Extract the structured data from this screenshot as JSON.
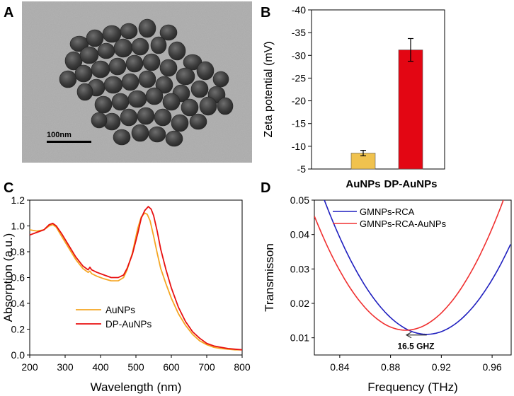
{
  "panels": {
    "A": {
      "label": "A"
    },
    "B": {
      "label": "B"
    },
    "C": {
      "label": "C"
    },
    "D": {
      "label": "D"
    }
  },
  "tem": {
    "scale_bar_label": "100nm"
  },
  "colors": {
    "aunps": "#f5c04a",
    "dp_aunps": "#e8000a",
    "gmnps_rca": "#1f1fbf",
    "gmnps_rca_aunps": "#f03030",
    "axis": "#000000"
  },
  "chart_data": [
    {
      "panel": "B",
      "type": "bar",
      "title": "",
      "xlabel": "",
      "ylabel": "Zeta potential (mV)",
      "categories": [
        "AuNPs",
        "DP-AuNPs"
      ],
      "values": [
        -8.5,
        -31.2
      ],
      "errors": [
        0.6,
        2.5
      ],
      "bar_colors": [
        "#f0c24e",
        "#e30613"
      ],
      "ylim": [
        -5,
        -40
      ],
      "yticks": [
        -5,
        -10,
        -15,
        -20,
        -25,
        -30,
        -35,
        -40
      ],
      "ytick_labels": [
        "-5",
        "-10",
        "-15",
        "-20",
        "-25",
        "-30",
        "-35",
        "-40"
      ]
    },
    {
      "panel": "C",
      "type": "line",
      "xlabel": "Wavelength (nm)",
      "ylabel": "Absorption (a.u.)",
      "xlim": [
        200,
        800
      ],
      "ylim": [
        0.0,
        1.2
      ],
      "xticks": [
        200,
        300,
        400,
        500,
        600,
        700,
        800
      ],
      "xtick_labels": [
        "200",
        "300",
        "400",
        "500",
        "600",
        "700",
        "800"
      ],
      "yticks": [
        0.0,
        0.2,
        0.4,
        0.6,
        0.8,
        1.0,
        1.2
      ],
      "ytick_labels": [
        "0.0",
        "0.2",
        "0.4",
        "0.6",
        "0.8",
        "1.0",
        "1.2"
      ],
      "legend_position": "bottom-left",
      "series": [
        {
          "name": "AuNPs",
          "color": "#f5a623",
          "x": [
            200,
            220,
            240,
            255,
            265,
            275,
            290,
            310,
            330,
            350,
            365,
            370,
            375,
            390,
            410,
            430,
            450,
            465,
            475,
            490,
            505,
            515,
            525,
            532,
            540,
            550,
            560,
            570,
            585,
            600,
            620,
            640,
            660,
            680,
            700,
            720,
            740,
            760,
            780,
            800
          ],
          "y": [
            0.97,
            0.96,
            0.97,
            1.0,
            1.01,
            0.99,
            0.92,
            0.83,
            0.74,
            0.67,
            0.64,
            0.65,
            0.63,
            0.61,
            0.59,
            0.575,
            0.575,
            0.6,
            0.66,
            0.79,
            0.98,
            1.07,
            1.1,
            1.09,
            1.04,
            0.92,
            0.79,
            0.67,
            0.55,
            0.44,
            0.32,
            0.23,
            0.16,
            0.11,
            0.08,
            0.06,
            0.05,
            0.045,
            0.04,
            0.04
          ]
        },
        {
          "name": "DP-AuNPs",
          "color": "#e81010",
          "x": [
            200,
            220,
            240,
            255,
            265,
            275,
            290,
            310,
            330,
            350,
            365,
            370,
            375,
            390,
            410,
            430,
            450,
            465,
            475,
            490,
            505,
            515,
            525,
            535,
            543,
            550,
            560,
            570,
            585,
            600,
            620,
            640,
            660,
            680,
            700,
            720,
            740,
            760,
            780,
            800
          ],
          "y": [
            0.93,
            0.95,
            0.97,
            1.01,
            1.02,
            1.0,
            0.94,
            0.85,
            0.76,
            0.69,
            0.66,
            0.68,
            0.66,
            0.64,
            0.62,
            0.6,
            0.6,
            0.62,
            0.67,
            0.78,
            0.94,
            1.06,
            1.12,
            1.15,
            1.13,
            1.08,
            0.96,
            0.82,
            0.66,
            0.52,
            0.37,
            0.26,
            0.18,
            0.13,
            0.09,
            0.07,
            0.06,
            0.05,
            0.045,
            0.04
          ]
        }
      ]
    },
    {
      "panel": "D",
      "type": "line",
      "xlabel": "Frequency (THz)",
      "ylabel": "Transmisson",
      "xlim": [
        0.82,
        0.975
      ],
      "ylim": [
        0.005,
        0.05
      ],
      "xticks": [
        0.84,
        0.88,
        0.92,
        0.96
      ],
      "xtick_labels": [
        "0.84",
        "0.88",
        "0.92",
        "0.96"
      ],
      "yticks": [
        0.01,
        0.02,
        0.03,
        0.04,
        0.05
      ],
      "ytick_labels": [
        "0.01",
        "0.02",
        "0.03",
        "0.04",
        "0.05"
      ],
      "legend_position": "top-center",
      "annotation": {
        "text": "16.5 GHZ",
        "arrow_from_x": 0.9085,
        "arrow_to_x": 0.8925,
        "arrow_y": 0.0108,
        "text_x": 0.9,
        "text_y": 0.0076
      },
      "series": [
        {
          "name": "GMNPs-RCA",
          "color": "#1f1fbf",
          "center": 0.9085,
          "min": 0.011,
          "curvature": 6.0
        },
        {
          "name": "GMNPs-RCA-AuNPs",
          "color": "#f03030",
          "center": 0.892,
          "min": 0.0122,
          "curvature": 6.4
        }
      ]
    }
  ]
}
